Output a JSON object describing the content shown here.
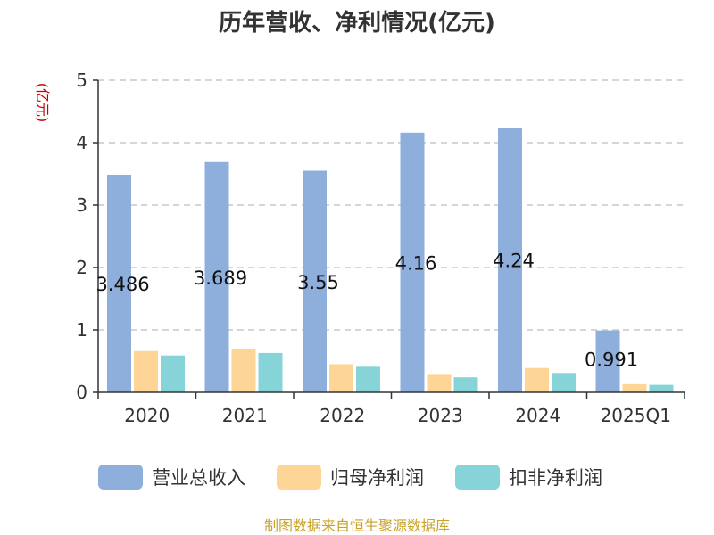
{
  "chart_data": {
    "type": "bar",
    "title": "历年营收、净利情况(亿元)",
    "ylabel": "(亿元)",
    "xlabel": "",
    "categories": [
      "2020",
      "2021",
      "2022",
      "2023",
      "2024",
      "2025Q1"
    ],
    "ylim": [
      0,
      5
    ],
    "yticks": [
      "0",
      "1",
      "2",
      "3",
      "4",
      "5"
    ],
    "grid": true,
    "legend_position": "bottom",
    "series": [
      {
        "name": "营业总收入",
        "color": "#8eaedb",
        "values": [
          3.486,
          3.689,
          3.55,
          4.16,
          4.24,
          0.991
        ],
        "labels": [
          "3.486",
          "3.689",
          "3.55",
          "4.16",
          "4.24",
          "0.991"
        ]
      },
      {
        "name": "归母净利润",
        "color": "#fdd597",
        "values": [
          0.66,
          0.7,
          0.45,
          0.28,
          0.39,
          0.13
        ]
      },
      {
        "name": "扣非净利润",
        "color": "#86d4d8",
        "values": [
          0.59,
          0.63,
          0.41,
          0.24,
          0.31,
          0.12
        ]
      }
    ]
  },
  "footer": {
    "source": "制图数据来自恒生聚源数据库"
  }
}
